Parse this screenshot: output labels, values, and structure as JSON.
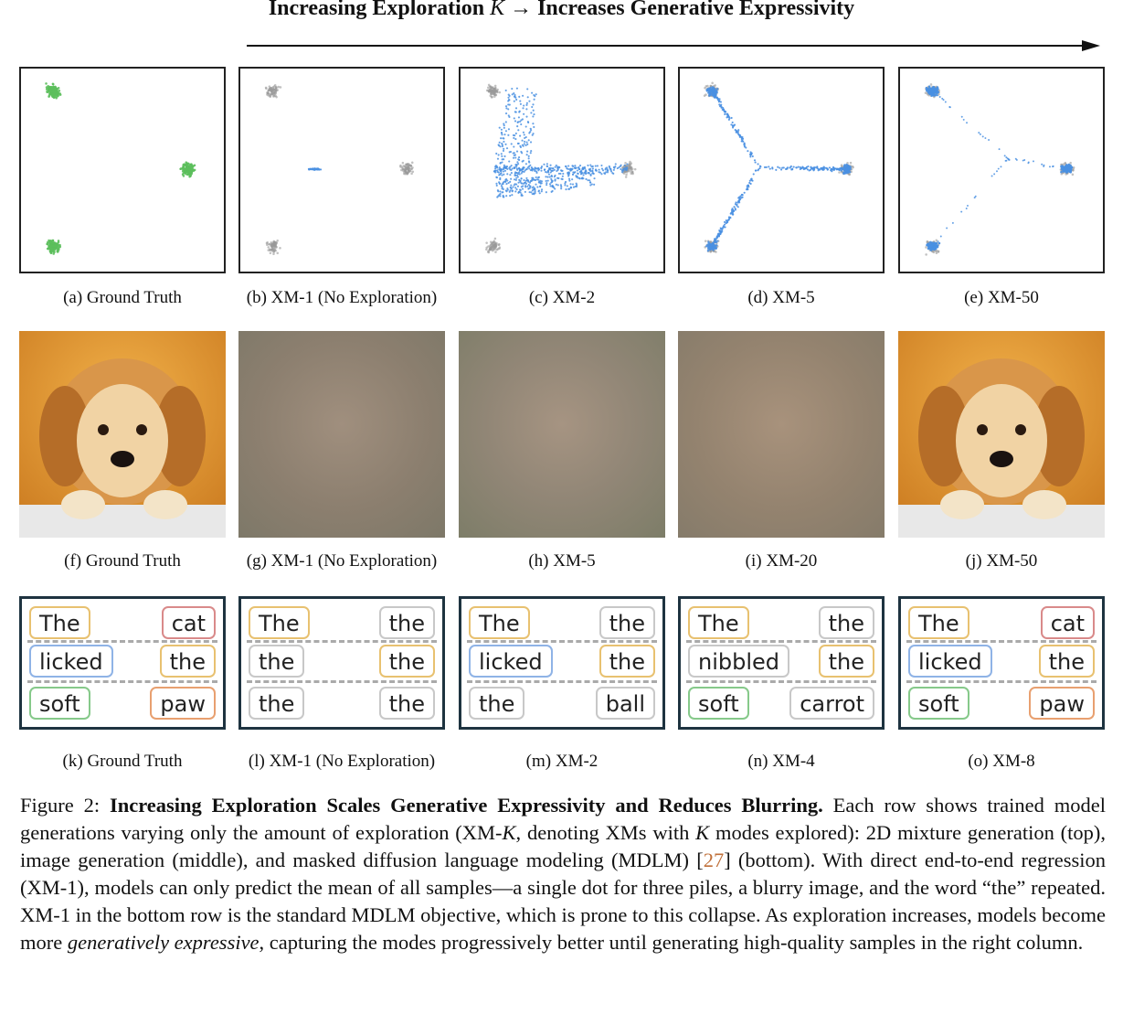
{
  "header": {
    "prefix": "Increasing Exploration ",
    "var": "K",
    "arrow": "→",
    "suffix": " Increases Generative Expressivity"
  },
  "row1": {
    "captions": [
      "(a) Ground Truth",
      "(b) XM-1 (No Exploration)",
      "(c) XM-2",
      "(d) XM-5",
      "(e) XM-50"
    ]
  },
  "row2": {
    "captions": [
      "(f) Ground Truth",
      "(g) XM-1 (No Exploration)",
      "(h) XM-5",
      "(i) XM-20",
      "(j) XM-50"
    ]
  },
  "row3": {
    "captions": [
      "(k) Ground Truth",
      "(l) XM-1 (No Exploration)",
      "(m) XM-2",
      "(n) XM-4",
      "(o) XM-8"
    ],
    "panels": [
      {
        "tokens": [
          [
            "The",
            "cat"
          ],
          [
            "licked",
            "the"
          ],
          [
            "soft",
            "paw"
          ]
        ],
        "colors": [
          [
            "#e8c170",
            "#d98a8a"
          ],
          [
            "#8fb3e6",
            "#e8c170"
          ],
          [
            "#86c98a",
            "#e8a070"
          ]
        ]
      },
      {
        "tokens": [
          [
            "The",
            "the"
          ],
          [
            "the",
            "the"
          ],
          [
            "the",
            "the"
          ]
        ],
        "colors": [
          [
            "#e8c170",
            "#c8c8c8"
          ],
          [
            "#c8c8c8",
            "#e8c170"
          ],
          [
            "#c8c8c8",
            "#c8c8c8"
          ]
        ]
      },
      {
        "tokens": [
          [
            "The",
            "the"
          ],
          [
            "licked",
            "the"
          ],
          [
            "the",
            "ball"
          ]
        ],
        "colors": [
          [
            "#e8c170",
            "#c8c8c8"
          ],
          [
            "#8fb3e6",
            "#e8c170"
          ],
          [
            "#c8c8c8",
            "#c8c8c8"
          ]
        ]
      },
      {
        "tokens": [
          [
            "The",
            "the"
          ],
          [
            "nibbled",
            "the"
          ],
          [
            "soft",
            "carrot"
          ]
        ],
        "colors": [
          [
            "#e8c170",
            "#c8c8c8"
          ],
          [
            "#c8c8c8",
            "#e8c170"
          ],
          [
            "#86c98a",
            "#c8c8c8"
          ]
        ]
      },
      {
        "tokens": [
          [
            "The",
            "cat"
          ],
          [
            "licked",
            "the"
          ],
          [
            "soft",
            "paw"
          ]
        ],
        "colors": [
          [
            "#e8c170",
            "#d98a8a"
          ],
          [
            "#8fb3e6",
            "#e8c170"
          ],
          [
            "#86c98a",
            "#e8a070"
          ]
        ]
      }
    ]
  },
  "caption": {
    "fig_label": "Figure 2: ",
    "bold": "Increasing Exploration Scales Generative Expressivity and Reduces Blurring.",
    "t1": " Each row shows trained model generations varying only the amount of exploration (XM-",
    "k1": "K",
    "t2": ", denoting XMs with ",
    "k2": "K",
    "t3": " modes explored): 2D mixture generation (top), image generation (middle), and masked diffusion language modeling (MDLM) [",
    "cite": "27",
    "t4": "] (bottom). With direct end-to-end regression (XM-1), models can only predict the mean of all samples—a single dot for three piles, a blurry image, and the word “the” repeated. XM-1 in the bottom row is the standard MDLM objective, which is prone to this collapse. As exploration increases, models become more ",
    "ital": "generatively expressive",
    "t5": ", capturing the modes progressively better until generating high-quality samples in the right column."
  },
  "colors": {
    "ground_truth": "#5cbf5c",
    "model": "#4a90e2",
    "target_grey": "#9a9a9a"
  }
}
